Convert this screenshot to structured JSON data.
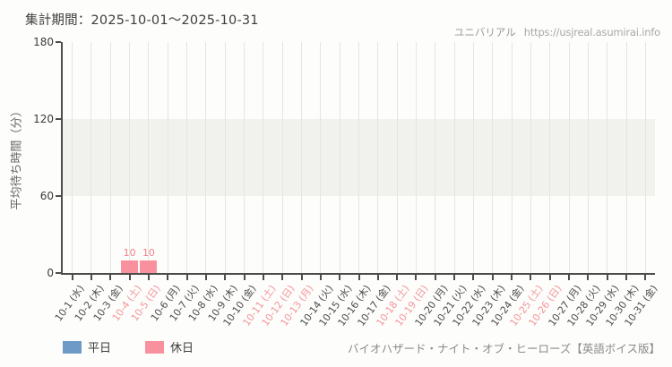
{
  "header": {
    "period_label": "集計期間：2025-10-01～2025-10-31",
    "site_name": "ユニバリアル",
    "site_url": "https://usjreal.asumirai.info"
  },
  "footer": {
    "attraction_name": "バイオハザード・ナイト・オブ・ヒーローズ【英語ボイス版】"
  },
  "chart_data": {
    "type": "bar",
    "title": "集計期間：2025-10-01～2025-10-31",
    "ylabel": "平均待ち時間（分）",
    "xlabel": "",
    "ylim": [
      0,
      180
    ],
    "yticks": [
      0,
      60,
      120,
      180
    ],
    "band": {
      "from": 60,
      "to": 120,
      "color": "#f1f1ee"
    },
    "grid": "vertical-only",
    "legend_position": "bottom-left",
    "categories": [
      "10-1 (水)",
      "10-2 (木)",
      "10-3 (金)",
      "10-4 (土)",
      "10-5 (日)",
      "10-6 (月)",
      "10-7 (火)",
      "10-8 (水)",
      "10-9 (木)",
      "10-10 (金)",
      "10-11 (土)",
      "10-12 (日)",
      "10-13 (月)",
      "10-14 (火)",
      "10-15 (水)",
      "10-16 (木)",
      "10-17 (金)",
      "10-18 (土)",
      "10-19 (日)",
      "10-20 (月)",
      "10-21 (火)",
      "10-22 (水)",
      "10-23 (木)",
      "10-24 (金)",
      "10-25 (土)",
      "10-26 (日)",
      "10-27 (月)",
      "10-28 (火)",
      "10-29 (水)",
      "10-30 (木)",
      "10-31 (金)"
    ],
    "holiday_mask": [
      false,
      false,
      false,
      true,
      true,
      false,
      false,
      false,
      false,
      false,
      true,
      true,
      true,
      false,
      false,
      false,
      false,
      true,
      true,
      false,
      false,
      false,
      false,
      false,
      true,
      true,
      false,
      false,
      false,
      false,
      false
    ],
    "series": [
      {
        "name": "平日",
        "color": "#6e9ac7",
        "values": [
          null,
          null,
          null,
          null,
          null,
          null,
          null,
          null,
          null,
          null,
          null,
          null,
          null,
          null,
          null,
          null,
          null,
          null,
          null,
          null,
          null,
          null,
          null,
          null,
          null,
          null,
          null,
          null,
          null,
          null,
          null
        ]
      },
      {
        "name": "休日",
        "color": "#f8919d",
        "values": [
          null,
          null,
          null,
          10,
          10,
          null,
          null,
          null,
          null,
          null,
          null,
          null,
          null,
          null,
          null,
          null,
          null,
          null,
          null,
          null,
          null,
          null,
          null,
          null,
          null,
          null,
          null,
          null,
          null,
          null,
          null
        ]
      }
    ],
    "colors": {
      "value_label": "#f0808c",
      "weekday_tick_label": "#4d4d4d",
      "holiday_tick_label": "#f4949c",
      "axis": "#4d4d4d",
      "gridline": "#e5e5e2"
    }
  }
}
